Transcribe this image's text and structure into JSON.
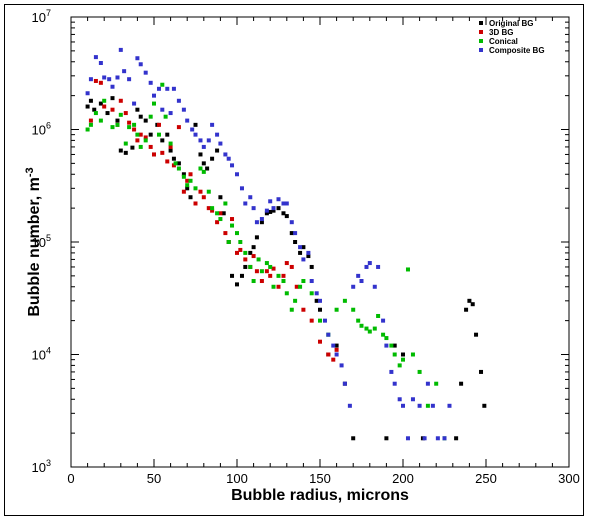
{
  "chart_data": {
    "type": "scatter",
    "xlabel": "Bubble radius, microns",
    "ylabel": "Bubble number, m",
    "ylabel_superscript": "-3",
    "xlim": [
      0,
      300
    ],
    "ylim": [
      1000,
      10000000
    ],
    "yscale": "log",
    "x_ticks": [
      0,
      50,
      100,
      150,
      200,
      250,
      300
    ],
    "x_tick_labels": [
      "0",
      "50",
      "100",
      "150",
      "200",
      "250",
      "300"
    ],
    "y_ticks": [
      1000,
      10000,
      100000,
      1000000,
      10000000
    ],
    "y_tick_base": "10",
    "y_tick_exponents": [
      "3",
      "4",
      "5",
      "6",
      "7"
    ],
    "grid": false,
    "legend_position": "top-right",
    "series": [
      {
        "name": "Original BG",
        "color": "#000000",
        "points": [
          [
            10,
            1600000
          ],
          [
            12,
            1800000
          ],
          [
            14,
            1500000
          ],
          [
            18,
            1700000
          ],
          [
            22,
            1400000
          ],
          [
            25,
            1900000
          ],
          [
            28,
            1200000
          ],
          [
            30,
            650000
          ],
          [
            33,
            620000
          ],
          [
            37,
            690000
          ],
          [
            40,
            1500000
          ],
          [
            42,
            1300000
          ],
          [
            45,
            1200000
          ],
          [
            48,
            900000
          ],
          [
            50,
            600000
          ],
          [
            52,
            1100000
          ],
          [
            55,
            800000
          ],
          [
            58,
            900000
          ],
          [
            60,
            650000
          ],
          [
            62,
            550000
          ],
          [
            65,
            500000
          ],
          [
            68,
            400000
          ],
          [
            70,
            300000
          ],
          [
            72,
            250000
          ],
          [
            75,
            1100000
          ],
          [
            78,
            600000
          ],
          [
            80,
            500000
          ],
          [
            82,
            450000
          ],
          [
            85,
            550000
          ],
          [
            88,
            650000
          ],
          [
            90,
            250000
          ],
          [
            92,
            180000
          ],
          [
            95,
            100000
          ],
          [
            97,
            50000
          ],
          [
            100,
            42000
          ],
          [
            103,
            50000
          ],
          [
            105,
            60000
          ],
          [
            108,
            80000
          ],
          [
            110,
            90000
          ],
          [
            112,
            110000
          ],
          [
            115,
            150000
          ],
          [
            118,
            180000
          ],
          [
            120,
            185000
          ],
          [
            122,
            190000
          ],
          [
            125,
            200000
          ],
          [
            128,
            180000
          ],
          [
            130,
            170000
          ],
          [
            133,
            120000
          ],
          [
            135,
            100000
          ],
          [
            138,
            80000
          ],
          [
            140,
            90000
          ],
          [
            143,
            75000
          ],
          [
            145,
            60000
          ],
          [
            148,
            30000
          ],
          [
            150,
            25000
          ],
          [
            155,
            10000
          ],
          [
            160,
            12000
          ],
          [
            165,
            5500
          ],
          [
            170,
            1800
          ],
          [
            190,
            1800
          ],
          [
            195,
            12000
          ],
          [
            200,
            10000
          ],
          [
            212,
            1800
          ],
          [
            232,
            1800
          ],
          [
            235,
            5500
          ],
          [
            238,
            25000
          ],
          [
            240,
            30000
          ],
          [
            242,
            28000
          ],
          [
            244,
            15000
          ],
          [
            247,
            7000
          ],
          [
            249,
            3500
          ]
        ]
      },
      {
        "name": "3D BG",
        "color": "#cc0000",
        "points": [
          [
            12,
            1200000
          ],
          [
            15,
            2700000
          ],
          [
            18,
            2600000
          ],
          [
            20,
            1600000
          ],
          [
            25,
            1500000
          ],
          [
            28,
            1100000
          ],
          [
            30,
            1800000
          ],
          [
            33,
            1400000
          ],
          [
            35,
            1150000
          ],
          [
            38,
            1000000
          ],
          [
            40,
            800000
          ],
          [
            42,
            900000
          ],
          [
            45,
            850000
          ],
          [
            48,
            700000
          ],
          [
            50,
            600000
          ],
          [
            53,
            1100000
          ],
          [
            55,
            620000
          ],
          [
            58,
            520000
          ],
          [
            60,
            700000
          ],
          [
            62,
            480000
          ],
          [
            65,
            1050000
          ],
          [
            68,
            280000
          ],
          [
            70,
            350000
          ],
          [
            72,
            400000
          ],
          [
            75,
            220000
          ],
          [
            78,
            280000
          ],
          [
            80,
            250000
          ],
          [
            83,
            200000
          ],
          [
            85,
            190000
          ],
          [
            88,
            150000
          ],
          [
            90,
            180000
          ],
          [
            93,
            120000
          ],
          [
            95,
            100000
          ],
          [
            97,
            160000
          ],
          [
            100,
            80000
          ],
          [
            102,
            85000
          ],
          [
            105,
            70000
          ],
          [
            108,
            60000
          ],
          [
            110,
            75000
          ],
          [
            112,
            55000
          ],
          [
            115,
            45000
          ],
          [
            118,
            55000
          ],
          [
            120,
            50000
          ],
          [
            122,
            58000
          ],
          [
            125,
            40000
          ],
          [
            128,
            50000
          ],
          [
            130,
            65000
          ],
          [
            133,
            60000
          ],
          [
            136,
            40000
          ],
          [
            140,
            25000
          ],
          [
            145,
            20000
          ],
          [
            150,
            13000
          ],
          [
            155,
            10000
          ],
          [
            158,
            9000
          ],
          [
            160,
            11000
          ]
        ]
      },
      {
        "name": "Conical",
        "color": "#00bb00",
        "points": [
          [
            10,
            1000000
          ],
          [
            12,
            1100000
          ],
          [
            15,
            1400000
          ],
          [
            18,
            1200000
          ],
          [
            20,
            1800000
          ],
          [
            25,
            1050000
          ],
          [
            28,
            1100000
          ],
          [
            30,
            1350000
          ],
          [
            33,
            750000
          ],
          [
            35,
            1050000
          ],
          [
            38,
            1100000
          ],
          [
            40,
            900000
          ],
          [
            42,
            700000
          ],
          [
            45,
            800000
          ],
          [
            48,
            1300000
          ],
          [
            50,
            1700000
          ],
          [
            53,
            900000
          ],
          [
            55,
            2500000
          ],
          [
            57,
            1300000
          ],
          [
            60,
            750000
          ],
          [
            63,
            500000
          ],
          [
            65,
            450000
          ],
          [
            68,
            380000
          ],
          [
            70,
            320000
          ],
          [
            72,
            350000
          ],
          [
            75,
            300000
          ],
          [
            78,
            450000
          ],
          [
            80,
            420000
          ],
          [
            83,
            280000
          ],
          [
            85,
            200000
          ],
          [
            88,
            180000
          ],
          [
            90,
            160000
          ],
          [
            93,
            220000
          ],
          [
            95,
            100000
          ],
          [
            97,
            140000
          ],
          [
            100,
            120000
          ],
          [
            102,
            100000
          ],
          [
            105,
            80000
          ],
          [
            108,
            60000
          ],
          [
            110,
            45000
          ],
          [
            113,
            70000
          ],
          [
            115,
            55000
          ],
          [
            118,
            65000
          ],
          [
            120,
            60000
          ],
          [
            122,
            40000
          ],
          [
            125,
            50000
          ],
          [
            128,
            45000
          ],
          [
            130,
            35000
          ],
          [
            133,
            25000
          ],
          [
            135,
            30000
          ],
          [
            138,
            40000
          ],
          [
            140,
            45000
          ],
          [
            145,
            35000
          ],
          [
            150,
            20000
          ],
          [
            155,
            15000
          ],
          [
            160,
            25000
          ],
          [
            165,
            30000
          ],
          [
            170,
            25000
          ],
          [
            173,
            20000
          ],
          [
            175,
            18000
          ],
          [
            178,
            17000
          ],
          [
            180,
            16000
          ],
          [
            183,
            17000
          ],
          [
            185,
            22000
          ],
          [
            188,
            15000
          ],
          [
            190,
            14000
          ],
          [
            193,
            12000
          ],
          [
            195,
            10000
          ],
          [
            198,
            8000
          ],
          [
            200,
            9000
          ],
          [
            203,
            57000
          ],
          [
            206,
            10000
          ],
          [
            210,
            7000
          ],
          [
            215,
            3500
          ],
          [
            220,
            5500
          ],
          [
            225,
            1800
          ]
        ]
      },
      {
        "name": "Composite BG",
        "color": "#3333cc",
        "points": [
          [
            10,
            2100000
          ],
          [
            12,
            2800000
          ],
          [
            15,
            4400000
          ],
          [
            18,
            3900000
          ],
          [
            20,
            2900000
          ],
          [
            23,
            2800000
          ],
          [
            25,
            2400000
          ],
          [
            28,
            2900000
          ],
          [
            30,
            5100000
          ],
          [
            32,
            3300000
          ],
          [
            35,
            2800000
          ],
          [
            38,
            1700000
          ],
          [
            40,
            4300000
          ],
          [
            42,
            3800000
          ],
          [
            45,
            3200000
          ],
          [
            48,
            2600000
          ],
          [
            50,
            2000000
          ],
          [
            53,
            2300000
          ],
          [
            55,
            1500000
          ],
          [
            58,
            2300000
          ],
          [
            60,
            1400000
          ],
          [
            62,
            2300000
          ],
          [
            65,
            1800000
          ],
          [
            68,
            1500000
          ],
          [
            70,
            1200000
          ],
          [
            73,
            1000000
          ],
          [
            75,
            900000
          ],
          [
            78,
            800000
          ],
          [
            80,
            700000
          ],
          [
            83,
            800000
          ],
          [
            85,
            1100000
          ],
          [
            88,
            900000
          ],
          [
            90,
            750000
          ],
          [
            93,
            600000
          ],
          [
            95,
            550000
          ],
          [
            97,
            480000
          ],
          [
            100,
            400000
          ],
          [
            103,
            300000
          ],
          [
            105,
            220000
          ],
          [
            108,
            250000
          ],
          [
            110,
            200000
          ],
          [
            112,
            150000
          ],
          [
            115,
            160000
          ],
          [
            118,
            190000
          ],
          [
            120,
            230000
          ],
          [
            122,
            200000
          ],
          [
            125,
            240000
          ],
          [
            128,
            220000
          ],
          [
            130,
            220000
          ],
          [
            133,
            150000
          ],
          [
            135,
            120000
          ],
          [
            138,
            90000
          ],
          [
            140,
            70000
          ],
          [
            143,
            80000
          ],
          [
            145,
            45000
          ],
          [
            148,
            35000
          ],
          [
            150,
            30000
          ],
          [
            153,
            20000
          ],
          [
            155,
            15000
          ],
          [
            158,
            12000
          ],
          [
            160,
            10000
          ],
          [
            163,
            8000
          ],
          [
            165,
            5500
          ],
          [
            168,
            3500
          ],
          [
            170,
            40000
          ],
          [
            173,
            50000
          ],
          [
            175,
            45000
          ],
          [
            178,
            60000
          ],
          [
            180,
            65000
          ],
          [
            183,
            40000
          ],
          [
            185,
            60000
          ],
          [
            188,
            20000
          ],
          [
            190,
            12000
          ],
          [
            193,
            7000
          ],
          [
            195,
            5500
          ],
          [
            198,
            4000
          ],
          [
            200,
            3500
          ],
          [
            203,
            1800
          ],
          [
            206,
            4000
          ],
          [
            210,
            3500
          ],
          [
            213,
            1800
          ],
          [
            215,
            5500
          ],
          [
            218,
            3500
          ],
          [
            221,
            1800
          ],
          [
            225,
            1800
          ],
          [
            228,
            3500
          ]
        ]
      }
    ]
  }
}
